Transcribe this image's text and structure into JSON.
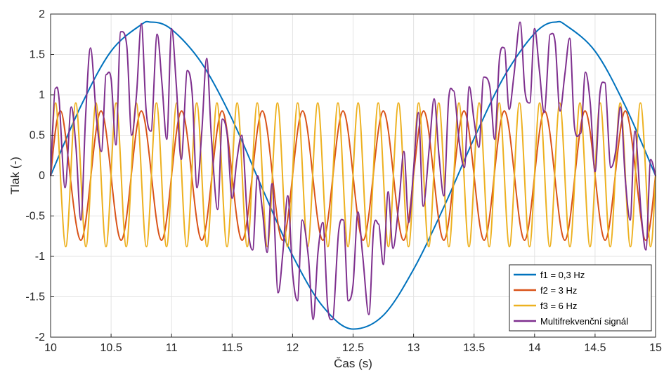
{
  "chart_data": {
    "type": "line",
    "xlabel": "Čas (s)",
    "ylabel": "Tlak (-)",
    "xlim": [
      10,
      15
    ],
    "ylim": [
      -2,
      2
    ],
    "x_ticks": [
      "10",
      "10.5",
      "11",
      "11.5",
      "12",
      "12.5",
      "13",
      "13.5",
      "14",
      "14.5",
      "15"
    ],
    "y_ticks": [
      "2",
      "1.5",
      "1",
      "0.5",
      "0",
      "-0.5",
      "-1",
      "-1.5",
      "-2"
    ],
    "grid": true,
    "legend_position": "bottom-right",
    "series": [
      {
        "name": "f1 = 0,3 Hz",
        "color": "#0072BD",
        "x": [
          10.0,
          10.25,
          10.5,
          10.75,
          10.833,
          11.0,
          11.25,
          11.5,
          11.75,
          12.0,
          12.25,
          12.5,
          12.75,
          13.0,
          13.25,
          13.5,
          13.75,
          14.0,
          14.167,
          14.25,
          14.5,
          14.75,
          15.0
        ],
        "y": [
          0.0,
          0.86,
          1.54,
          1.87,
          1.9,
          1.81,
          1.39,
          0.7,
          -0.16,
          -0.99,
          -1.62,
          -1.9,
          -1.73,
          -1.16,
          -0.39,
          0.46,
          1.23,
          1.76,
          1.9,
          1.87,
          1.54,
          0.86,
          0.0
        ]
      },
      {
        "name": "f2 = 3 Hz",
        "color": "#D95319",
        "x": [
          10.0,
          10.083,
          10.25,
          10.417,
          10.583,
          10.75,
          10.917,
          11.083,
          11.25,
          11.417,
          11.583,
          11.75,
          11.917,
          12.083,
          12.25,
          12.417,
          12.583,
          12.75,
          12.917,
          13.083,
          13.25,
          13.417,
          13.583,
          13.75,
          13.917,
          14.083,
          14.25,
          14.417,
          14.583,
          14.75,
          14.917,
          15.0
        ],
        "y": [
          0.0,
          0.8,
          -0.8,
          0.8,
          -0.8,
          0.8,
          -0.8,
          0.8,
          -0.8,
          0.8,
          -0.8,
          0.8,
          -0.8,
          0.8,
          -0.8,
          0.8,
          -0.8,
          0.8,
          -0.8,
          0.8,
          -0.8,
          0.8,
          -0.8,
          0.8,
          -0.8,
          0.8,
          -0.8,
          0.8,
          -0.8,
          0.8,
          -0.8,
          0.0
        ]
      },
      {
        "name": "f3 = 6 Hz",
        "color": "#EDB120",
        "x": [
          10.0,
          10.042,
          10.125,
          10.208,
          10.292,
          10.375,
          10.458,
          10.542,
          10.625,
          10.708,
          10.792,
          10.875,
          10.958,
          11.042,
          11.125,
          11.208,
          11.292,
          11.375,
          11.458,
          11.542,
          11.625,
          11.708,
          11.792,
          11.875,
          11.958,
          12.042,
          12.125,
          12.208,
          12.292,
          12.375,
          12.458,
          12.542,
          12.625,
          12.708,
          12.792,
          12.875,
          12.958,
          13.042,
          13.125,
          13.208,
          13.292,
          13.375,
          13.458,
          13.542,
          13.625,
          13.708,
          13.792,
          13.875,
          13.958,
          14.042,
          14.125,
          14.208,
          14.292,
          14.375,
          14.458,
          14.542,
          14.625,
          14.708,
          14.792,
          14.875,
          14.958,
          15.0
        ],
        "y": [
          0.0,
          0.9,
          -0.88,
          0.9,
          -0.88,
          0.9,
          -0.88,
          0.9,
          -0.88,
          0.9,
          -0.88,
          0.9,
          -0.88,
          0.9,
          -0.88,
          0.9,
          -0.88,
          0.9,
          -0.88,
          0.9,
          -0.88,
          0.9,
          -0.88,
          0.9,
          -0.88,
          0.9,
          -0.88,
          0.9,
          -0.88,
          0.9,
          -0.88,
          0.9,
          -0.88,
          0.9,
          -0.88,
          0.9,
          -0.88,
          0.9,
          -0.88,
          0.9,
          -0.88,
          0.9,
          -0.88,
          0.9,
          -0.88,
          0.9,
          -0.88,
          0.9,
          -0.88,
          0.9,
          -0.88,
          0.9,
          -0.88,
          0.9,
          -0.88,
          0.9,
          -0.88,
          0.9,
          -0.88,
          0.9,
          -0.88,
          0.0
        ]
      },
      {
        "name": "Multifrekvenční signál",
        "color": "#7E2F8E",
        "x": [
          10.0,
          10.04,
          10.07,
          10.12,
          10.17,
          10.21,
          10.25,
          10.29,
          10.33,
          10.38,
          10.42,
          10.46,
          10.5,
          10.54,
          10.58,
          10.63,
          10.67,
          10.71,
          10.75,
          10.79,
          10.83,
          10.88,
          10.92,
          10.96,
          11.0,
          11.04,
          11.08,
          11.13,
          11.17,
          11.21,
          11.25,
          11.29,
          11.33,
          11.38,
          11.42,
          11.46,
          11.5,
          11.54,
          11.58,
          11.63,
          11.67,
          11.71,
          11.75,
          11.79,
          11.83,
          11.88,
          11.92,
          11.96,
          12.0,
          12.04,
          12.08,
          12.13,
          12.17,
          12.21,
          12.25,
          12.29,
          12.33,
          12.38,
          12.42,
          12.46,
          12.5,
          12.54,
          12.58,
          12.63,
          12.67,
          12.71,
          12.75,
          12.79,
          12.83,
          12.88,
          12.92,
          12.96,
          13.0,
          13.04,
          13.08,
          13.13,
          13.17,
          13.21,
          13.25,
          13.29,
          13.33,
          13.38,
          13.42,
          13.46,
          13.5,
          13.54,
          13.58,
          13.63,
          13.67,
          13.71,
          13.75,
          13.79,
          13.83,
          13.88,
          13.92,
          13.96,
          14.0,
          14.04,
          14.08,
          14.13,
          14.17,
          14.21,
          14.25,
          14.29,
          14.33,
          14.38,
          14.42,
          14.46,
          14.5,
          14.54,
          14.58,
          14.63,
          14.67,
          14.71,
          14.75,
          14.79,
          14.83,
          14.88,
          14.92,
          14.96,
          15.0
        ],
        "y": [
          0.0,
          1.08,
          0.95,
          -0.15,
          0.85,
          0.35,
          -0.55,
          0.75,
          1.58,
          0.7,
          0.3,
          1.25,
          1.2,
          0.38,
          1.78,
          1.6,
          0.5,
          1.0,
          1.88,
          0.8,
          0.55,
          1.75,
          1.15,
          0.45,
          1.82,
          1.1,
          0.2,
          1.3,
          1.02,
          -0.15,
          0.55,
          1.45,
          0.45,
          -0.42,
          0.7,
          0.5,
          -0.28,
          0.2,
          0.5,
          -0.62,
          -0.92,
          0.0,
          -0.42,
          -0.95,
          -0.1,
          -1.45,
          -0.95,
          -0.25,
          -1.2,
          -1.55,
          -0.55,
          -1.0,
          -1.78,
          -0.95,
          -0.58,
          -1.62,
          -1.78,
          -0.7,
          -0.55,
          -1.55,
          -1.35,
          -0.45,
          -1.0,
          -1.72,
          -0.65,
          -0.6,
          -1.1,
          -0.2,
          -0.9,
          -0.32,
          0.3,
          -0.58,
          0.08,
          0.78,
          -0.38,
          0.35,
          0.95,
          0.25,
          -0.25,
          0.95,
          1.05,
          0.38,
          0.1,
          1.1,
          0.68,
          0.35,
          1.22,
          1.1,
          0.45,
          1.45,
          1.58,
          0.82,
          1.25,
          1.9,
          1.05,
          0.9,
          1.82,
          1.3,
          0.78,
          1.75,
          1.65,
          0.8,
          1.25,
          1.7,
          0.6,
          0.52,
          1.28,
          0.9,
          0.05,
          1.02,
          1.15,
          0.1,
          0.3,
          0.85,
          -0.05,
          -0.55,
          0.55,
          -0.45,
          -0.92,
          0.2,
          0.0
        ]
      }
    ]
  }
}
